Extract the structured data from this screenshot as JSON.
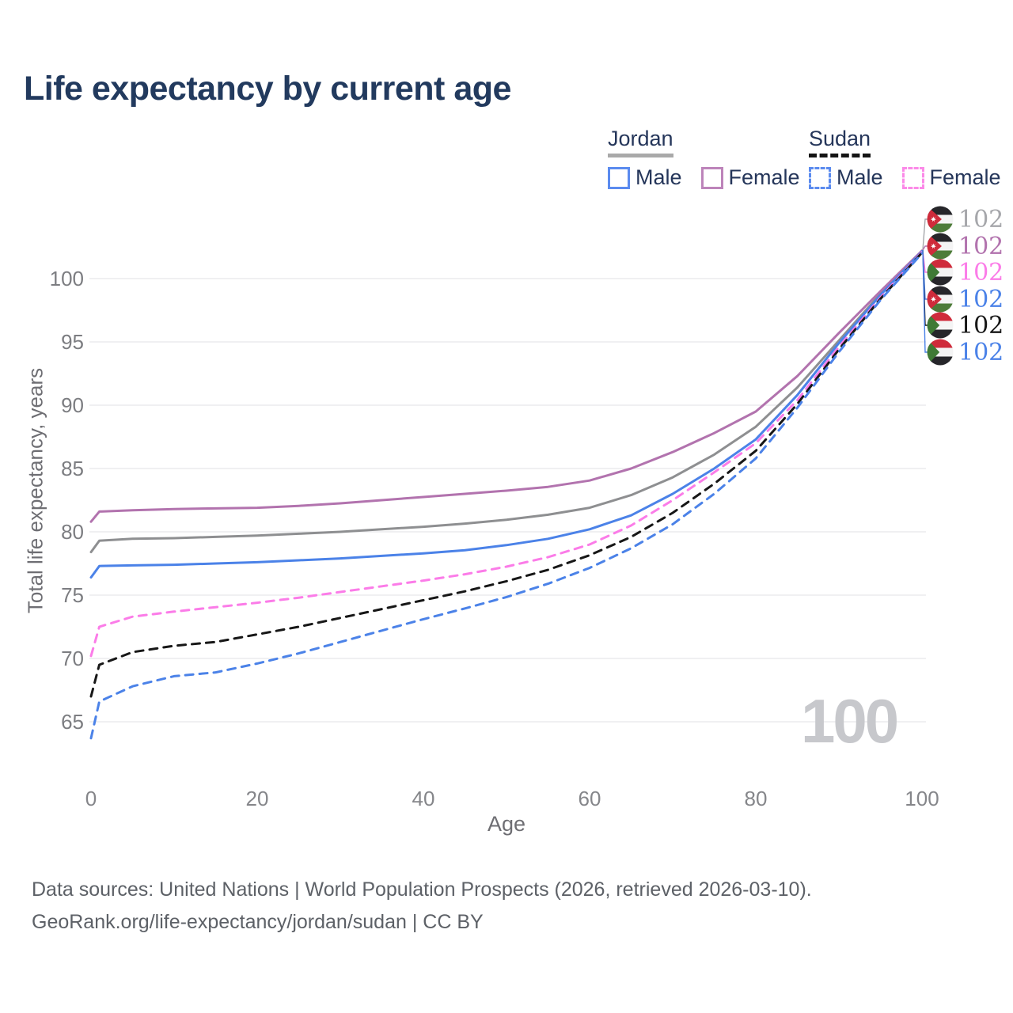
{
  "page": {
    "title": "Life expectancy by current age"
  },
  "legend": {
    "jordan": {
      "title": "Jordan",
      "male": "Male",
      "female": "Female"
    },
    "sudan": {
      "title": "Sudan",
      "male": "Male",
      "female": "Female"
    }
  },
  "axes": {
    "x_label": "Age",
    "y_label": "Total life expectancy, years",
    "x_ticks": [
      0,
      20,
      40,
      60,
      80,
      100
    ],
    "y_ticks": [
      65,
      70,
      75,
      80,
      85,
      90,
      95,
      100
    ]
  },
  "watermark": "100",
  "attribution": {
    "line1": "Data sources: United Nations | World Population Prospects (2026, retrieved 2026-03-10).",
    "line2": "GeoRank.org/life-expectancy/jordan/sudan | CC BY"
  },
  "chart_data": {
    "type": "line",
    "title": "Life expectancy by current age",
    "xlabel": "Age",
    "ylabel": "Total life expectancy, years",
    "xlim": [
      0,
      100
    ],
    "ylim": [
      63,
      103
    ],
    "grid": "horizontal",
    "legend_position": "top-right",
    "x": [
      0,
      1,
      5,
      10,
      15,
      20,
      25,
      30,
      35,
      40,
      45,
      50,
      55,
      60,
      65,
      70,
      75,
      80,
      85,
      90,
      95,
      100
    ],
    "series": [
      {
        "name": "Jordan Total",
        "country": "Jordan",
        "sex": "Total",
        "color": "#8e8f91",
        "dash": "solid",
        "values": [
          78.4,
          79.3,
          79.45,
          79.5,
          79.6,
          79.7,
          79.85,
          80.0,
          80.2,
          80.4,
          80.65,
          80.95,
          81.35,
          81.9,
          82.9,
          84.3,
          86.1,
          88.3,
          91.4,
          95.1,
          98.8,
          102.2
        ]
      },
      {
        "name": "Jordan Female",
        "country": "Jordan",
        "sex": "Female",
        "color": "#b273ae",
        "dash": "solid",
        "values": [
          80.8,
          81.6,
          81.7,
          81.8,
          81.85,
          81.9,
          82.05,
          82.25,
          82.5,
          82.75,
          83.0,
          83.25,
          83.55,
          84.05,
          85.0,
          86.3,
          87.8,
          89.5,
          92.3,
          95.7,
          99.0,
          102.2
        ]
      },
      {
        "name": "Jordan Male",
        "country": "Jordan",
        "sex": "Male",
        "color": "#4b82e8",
        "dash": "solid",
        "values": [
          76.4,
          77.3,
          77.35,
          77.4,
          77.5,
          77.6,
          77.75,
          77.9,
          78.1,
          78.3,
          78.55,
          78.95,
          79.45,
          80.2,
          81.3,
          83.0,
          85.0,
          87.3,
          90.8,
          94.9,
          98.7,
          102.15
        ]
      },
      {
        "name": "Sudan Female",
        "country": "Sudan",
        "sex": "Female",
        "color": "#fb7ce8",
        "dash": "dashed",
        "values": [
          70.2,
          72.5,
          73.3,
          73.7,
          74.05,
          74.4,
          74.8,
          75.25,
          75.7,
          76.15,
          76.65,
          77.25,
          78.0,
          79.0,
          80.5,
          82.5,
          84.7,
          87.0,
          90.4,
          94.6,
          98.5,
          102.1
        ]
      },
      {
        "name": "Sudan Total",
        "country": "Sudan",
        "sex": "Total",
        "color": "#171717",
        "dash": "dashed",
        "values": [
          67.0,
          69.5,
          70.5,
          71.0,
          71.3,
          71.9,
          72.5,
          73.2,
          73.9,
          74.6,
          75.3,
          76.1,
          77.0,
          78.15,
          79.6,
          81.5,
          83.8,
          86.4,
          90.1,
          94.4,
          98.4,
          102.05
        ]
      },
      {
        "name": "Sudan Male",
        "country": "Sudan",
        "sex": "Male",
        "color": "#4b82e8",
        "dash": "dashed",
        "values": [
          63.7,
          66.6,
          67.8,
          68.6,
          68.9,
          69.6,
          70.4,
          71.3,
          72.2,
          73.1,
          73.95,
          74.85,
          75.9,
          77.15,
          78.7,
          80.6,
          83.0,
          85.8,
          89.8,
          94.2,
          98.3,
          102.0
        ]
      }
    ],
    "end_labels": [
      {
        "flag": "jordan",
        "series": "Jordan Total",
        "value": "102",
        "color": "#a6a7ab"
      },
      {
        "flag": "jordan",
        "series": "Jordan Female",
        "value": "102",
        "color": "#b273ae"
      },
      {
        "flag": "sudan",
        "series": "Sudan Female",
        "value": "102",
        "color": "#fb7ce8"
      },
      {
        "flag": "jordan",
        "series": "Jordan Male",
        "value": "102",
        "color": "#4b82e8"
      },
      {
        "flag": "sudan",
        "series": "Sudan Total",
        "value": "102",
        "color": "#171717"
      },
      {
        "flag": "sudan",
        "series": "Sudan Male",
        "value": "102",
        "color": "#4b82e8"
      }
    ]
  }
}
